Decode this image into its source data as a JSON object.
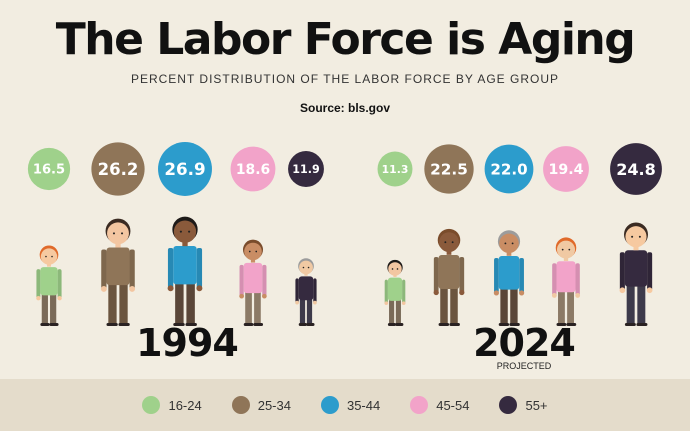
{
  "title": "The Labor Force is Aging",
  "subtitle": "PERCENT DISTRIBUTION OF THE LABOR FORCE BY AGE GROUP",
  "source": "Source: bls.gov",
  "chart_data": {
    "type": "bubble",
    "categories": [
      "16-24",
      "25-34",
      "35-44",
      "45-54",
      "55+"
    ],
    "colors": [
      "#9fd18b",
      "#8f7558",
      "#2c9ccc",
      "#f2a3c9",
      "#352a3f"
    ],
    "series": [
      {
        "name": "1994",
        "values": [
          16.5,
          26.2,
          26.9,
          18.6,
          11.9
        ]
      },
      {
        "name": "2024",
        "values": [
          11.3,
          22.5,
          22.0,
          19.4,
          24.8
        ],
        "note": "PROJECTED"
      }
    ]
  },
  "legend": [
    {
      "label": "16-24",
      "color": "#9fd18b"
    },
    {
      "label": "25-34",
      "color": "#8f7558"
    },
    {
      "label": "35-44",
      "color": "#2c9ccc"
    },
    {
      "label": "45-54",
      "color": "#f2a3c9"
    },
    {
      "label": "55+",
      "color": "#352a3f"
    }
  ]
}
